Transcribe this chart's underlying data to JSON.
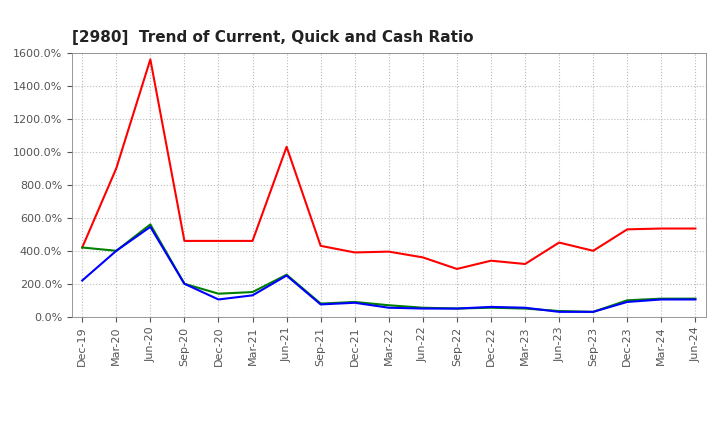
{
  "title": "[2980]  Trend of Current, Quick and Cash Ratio",
  "x_labels": [
    "Dec-19",
    "Mar-20",
    "Jun-20",
    "Sep-20",
    "Dec-20",
    "Mar-21",
    "Jun-21",
    "Sep-21",
    "Dec-21",
    "Mar-22",
    "Jun-22",
    "Sep-22",
    "Dec-22",
    "Mar-23",
    "Jun-23",
    "Sep-23",
    "Dec-23",
    "Mar-24",
    "Jun-24"
  ],
  "current_ratio": [
    420,
    900,
    1560,
    460,
    460,
    460,
    1030,
    430,
    390,
    395,
    360,
    290,
    340,
    320,
    450,
    400,
    530,
    535,
    535
  ],
  "quick_ratio": [
    420,
    400,
    560,
    200,
    140,
    150,
    255,
    80,
    90,
    70,
    55,
    50,
    55,
    50,
    35,
    30,
    100,
    110,
    110
  ],
  "cash_ratio": [
    220,
    400,
    545,
    200,
    105,
    130,
    250,
    75,
    85,
    55,
    50,
    50,
    60,
    55,
    30,
    30,
    90,
    105,
    105
  ],
  "ylim": [
    0,
    1600
  ],
  "yticks": [
    0,
    200,
    400,
    600,
    800,
    1000,
    1200,
    1400,
    1600
  ],
  "current_color": "#FF0000",
  "quick_color": "#008000",
  "cash_color": "#0000FF",
  "bg_color": "#FFFFFF",
  "plot_bg_color": "#FFFFFF",
  "grid_color": "#BBBBBB",
  "title_fontsize": 11,
  "tick_fontsize": 8,
  "legend_fontsize": 9
}
